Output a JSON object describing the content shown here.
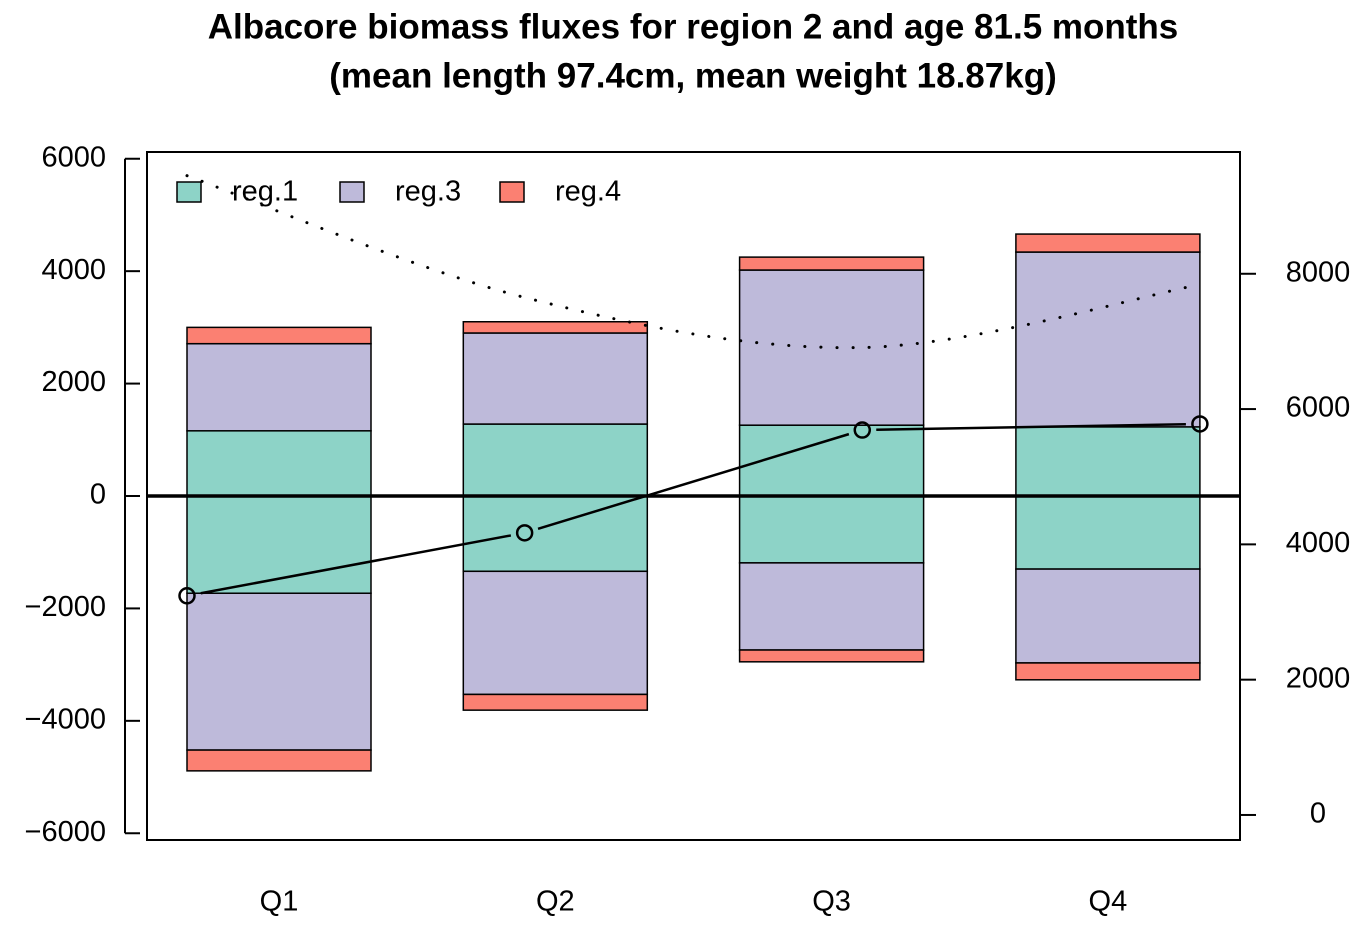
{
  "chart_data": {
    "type": "stacked-flux-bar",
    "title": "Albacore biomass fluxes for region 2 and age 81.5 months",
    "subtitle": "(mean length 97.4cm, mean weight 18.87kg)",
    "categories": [
      "Q1",
      "Q2",
      "Q3",
      "Q4"
    ],
    "series": [
      {
        "name": "reg.1",
        "color": "#8dd3c7",
        "values": [
          1160,
          1280,
          1260,
          1230
        ],
        "negative_values": [
          -1730,
          -1340,
          -1190,
          -1300
        ]
      },
      {
        "name": "reg.3",
        "color": "#bebada",
        "values": [
          1550,
          1620,
          2760,
          3110
        ],
        "negative_values": [
          -2790,
          -2190,
          -1550,
          -1670
        ]
      },
      {
        "name": "reg.4",
        "color": "#fb8072",
        "values": [
          290,
          200,
          230,
          320
        ],
        "negative_values": [
          -370,
          -280,
          -210,
          -300
        ]
      }
    ],
    "lines": [
      {
        "values": [
          3240,
          4170,
          5690,
          5780
        ],
        "axis": "y2",
        "style": "solid",
        "markers": true
      },
      {
        "values": [
          9450,
          7650,
          6910,
          7840
        ],
        "axis": "y2",
        "style": "dotted",
        "markers": false
      }
    ],
    "ylim": [
      -6120,
      6120
    ],
    "yticks": [
      {
        "value": -6000,
        "label": "−6000"
      },
      {
        "value": -4000,
        "label": "−4000"
      },
      {
        "value": -2000,
        "label": "−2000"
      },
      0,
      2000,
      4000,
      6000
    ],
    "y2lim": [
      -370,
      9800
    ],
    "y2ticks": [
      0,
      2000,
      4000,
      6000,
      8000
    ],
    "legend": "top-left"
  }
}
